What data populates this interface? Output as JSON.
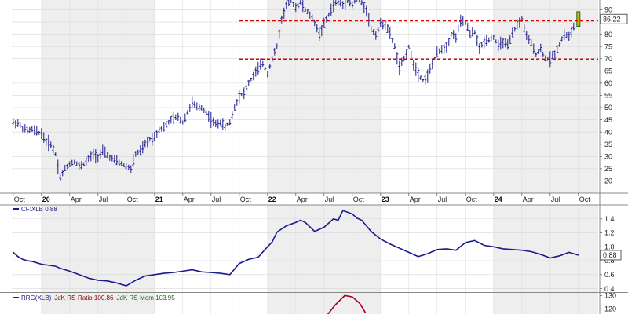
{
  "chart_data": [
    {
      "type": "bar",
      "subtype": "ohlc",
      "title": "",
      "xlabel": "",
      "ylabel": "",
      "ylim": [
        15,
        94
      ],
      "y_ticks": [
        20,
        25,
        30,
        35,
        40,
        45,
        50,
        55,
        60,
        65,
        70,
        75,
        80,
        85,
        90
      ],
      "x_ticks": [
        {
          "label": "Oct",
          "t": 0,
          "year": false
        },
        {
          "label": "20",
          "t": 3,
          "year": true
        },
        {
          "label": "Apr",
          "t": 6,
          "year": false
        },
        {
          "label": "Jul",
          "t": 9,
          "year": false
        },
        {
          "label": "Oct",
          "t": 12,
          "year": false
        },
        {
          "label": "21",
          "t": 15,
          "year": true
        },
        {
          "label": "Apr",
          "t": 18,
          "year": false
        },
        {
          "label": "Jul",
          "t": 21,
          "year": false
        },
        {
          "label": "Oct",
          "t": 24,
          "year": false
        },
        {
          "label": "22",
          "t": 27,
          "year": true
        },
        {
          "label": "Apr",
          "t": 30,
          "year": false
        },
        {
          "label": "Jul",
          "t": 33,
          "year": false
        },
        {
          "label": "Oct",
          "t": 36,
          "year": false
        },
        {
          "label": "23",
          "t": 39,
          "year": true
        },
        {
          "label": "Apr",
          "t": 42,
          "year": false
        },
        {
          "label": "Jul",
          "t": 45,
          "year": false
        },
        {
          "label": "Oct",
          "t": 48,
          "year": false
        },
        {
          "label": "24",
          "t": 51,
          "year": true
        },
        {
          "label": "Apr",
          "t": 54,
          "year": false
        },
        {
          "label": "Jul",
          "t": 57,
          "year": false
        },
        {
          "label": "Oct",
          "t": 60,
          "year": false
        }
      ],
      "t_range": [
        -0.15,
        62.1
      ],
      "horizontal_lines": [
        {
          "value": 85.5,
          "color": "#dd0000",
          "style": "dashed"
        },
        {
          "value": 69.8,
          "color": "#dd0000",
          "style": "dashed"
        }
      ],
      "last_value_label": "86.22",
      "last_value": 86.22,
      "series": [
        {
          "color": "#1a1a8c",
          "points": [
            [
              0,
              44
            ],
            [
              0.5,
              43.5
            ],
            [
              1,
              41.5
            ],
            [
              1.5,
              40.5
            ],
            [
              2,
              41
            ],
            [
              2.5,
              40
            ],
            [
              3,
              39.5
            ],
            [
              3.5,
              36
            ],
            [
              4,
              35
            ],
            [
              4.5,
              31
            ],
            [
              5,
              21.5
            ],
            [
              5.5,
              25
            ],
            [
              6,
              27
            ],
            [
              6.5,
              28
            ],
            [
              7,
              26
            ],
            [
              7.5,
              27
            ],
            [
              8,
              29
            ],
            [
              8.5,
              31
            ],
            [
              9,
              30
            ],
            [
              9.5,
              32
            ],
            [
              10,
              30.5
            ],
            [
              10.5,
              29
            ],
            [
              11,
              28
            ],
            [
              11.5,
              27
            ],
            [
              12,
              26
            ],
            [
              12.5,
              25
            ],
            [
              13,
              31
            ],
            [
              13.5,
              32
            ],
            [
              14,
              35
            ],
            [
              14.5,
              37
            ],
            [
              15,
              38
            ],
            [
              15.5,
              41
            ],
            [
              16,
              42
            ],
            [
              16.5,
              44
            ],
            [
              17,
              45.5
            ],
            [
              17.5,
              46
            ],
            [
              18,
              44
            ],
            [
              18.5,
              48
            ],
            [
              19,
              52
            ],
            [
              19.5,
              50
            ],
            [
              20,
              50
            ],
            [
              20.5,
              48
            ],
            [
              21,
              45
            ],
            [
              21.5,
              43
            ],
            [
              22,
              44
            ],
            [
              22.5,
              42
            ],
            [
              23,
              44
            ],
            [
              23.5,
              50
            ],
            [
              24,
              55
            ],
            [
              24.5,
              56
            ],
            [
              25,
              60
            ],
            [
              25.5,
              63
            ],
            [
              26,
              66
            ],
            [
              26.5,
              68
            ],
            [
              27,
              64
            ],
            [
              27.5,
              70
            ],
            [
              28,
              75
            ],
            [
              28.5,
              86
            ],
            [
              29,
              92
            ],
            [
              29.5,
              94
            ],
            [
              30,
              91
            ],
            [
              30.5,
              93
            ],
            [
              31,
              90
            ],
            [
              31.5,
              88
            ],
            [
              32,
              85
            ],
            [
              32.5,
              80
            ],
            [
              33,
              84
            ],
            [
              33.5,
              88
            ],
            [
              34,
              92
            ],
            [
              34.5,
              93
            ],
            [
              35,
              92
            ],
            [
              35.5,
              94
            ],
            [
              36,
              92
            ],
            [
              36.5,
              95
            ],
            [
              37,
              93
            ],
            [
              37.5,
              90
            ],
            [
              38,
              82
            ],
            [
              38.5,
              80
            ],
            [
              39,
              84
            ],
            [
              39.5,
              84
            ],
            [
              40,
              80
            ],
            [
              40.5,
              75
            ],
            [
              41,
              66
            ],
            [
              41.5,
              70
            ],
            [
              42,
              75
            ],
            [
              42.5,
              68
            ],
            [
              43,
              64
            ],
            [
              43.5,
              61
            ],
            [
              44,
              63
            ],
            [
              44.5,
              68
            ],
            [
              45,
              72
            ],
            [
              45.5,
              74
            ],
            [
              46,
              75
            ],
            [
              46.5,
              80
            ],
            [
              47,
              79
            ],
            [
              47.5,
              85
            ],
            [
              48,
              85
            ],
            [
              48.5,
              80
            ],
            [
              49,
              81
            ],
            [
              49.5,
              74
            ],
            [
              50,
              77
            ],
            [
              50.5,
              78
            ],
            [
              51,
              79
            ],
            [
              51.5,
              75
            ],
            [
              52,
              77
            ],
            [
              52.5,
              75
            ],
            [
              53,
              80
            ],
            [
              53.5,
              84
            ],
            [
              54,
              86
            ],
            [
              54.5,
              79
            ],
            [
              55,
              76
            ],
            [
              55.5,
              72
            ],
            [
              56,
              74
            ],
            [
              56.5,
              70
            ],
            [
              57,
              70
            ],
            [
              57.5,
              72
            ],
            [
              58,
              76
            ],
            [
              58.5,
              80
            ],
            [
              59,
              79
            ],
            [
              59.5,
              83
            ],
            [
              60,
              86.22
            ]
          ]
        }
      ]
    },
    {
      "type": "line",
      "legend": {
        "text": "CF:XLB 0.88",
        "color": "#1a1a8c"
      },
      "ylim": [
        0.35,
        1.6
      ],
      "y_ticks": [
        0.4,
        0.6,
        0.8,
        1.0,
        1.2,
        1.4
      ],
      "y_tick_labels": [
        "0.4",
        "0.6",
        "0.8",
        "1.0",
        "1.2",
        "1.4"
      ],
      "last_value_label": "0.88",
      "last_value": 0.88,
      "series": [
        {
          "color": "#1a1a8c",
          "points": [
            [
              0,
              0.92
            ],
            [
              0.5,
              0.86
            ],
            [
              1,
              0.82
            ],
            [
              1.5,
              0.8
            ],
            [
              2,
              0.79
            ],
            [
              2.5,
              0.77
            ],
            [
              3,
              0.75
            ],
            [
              3.5,
              0.74
            ],
            [
              4,
              0.73
            ],
            [
              4.5,
              0.72
            ],
            [
              5,
              0.69
            ],
            [
              6,
              0.65
            ],
            [
              7,
              0.6
            ],
            [
              8,
              0.55
            ],
            [
              9,
              0.52
            ],
            [
              10,
              0.51
            ],
            [
              11,
              0.48
            ],
            [
              12,
              0.44
            ],
            [
              13,
              0.52
            ],
            [
              14,
              0.58
            ],
            [
              15,
              0.6
            ],
            [
              16,
              0.62
            ],
            [
              17,
              0.63
            ],
            [
              18,
              0.65
            ],
            [
              19,
              0.67
            ],
            [
              20,
              0.64
            ],
            [
              21,
              0.63
            ],
            [
              22,
              0.62
            ],
            [
              23,
              0.6
            ],
            [
              24,
              0.76
            ],
            [
              25,
              0.82
            ],
            [
              26,
              0.85
            ],
            [
              27,
              1.0
            ],
            [
              27.5,
              1.07
            ],
            [
              28,
              1.21
            ],
            [
              29,
              1.3
            ],
            [
              30,
              1.35
            ],
            [
              30.5,
              1.38
            ],
            [
              31,
              1.35
            ],
            [
              32,
              1.22
            ],
            [
              33,
              1.28
            ],
            [
              34,
              1.4
            ],
            [
              34.5,
              1.38
            ],
            [
              35,
              1.52
            ],
            [
              36,
              1.47
            ],
            [
              36.5,
              1.41
            ],
            [
              37,
              1.38
            ],
            [
              38,
              1.22
            ],
            [
              39,
              1.11
            ],
            [
              40,
              1.04
            ],
            [
              41,
              0.98
            ],
            [
              42,
              0.92
            ],
            [
              43,
              0.86
            ],
            [
              44,
              0.9
            ],
            [
              45,
              0.96
            ],
            [
              46,
              0.97
            ],
            [
              47,
              0.95
            ],
            [
              48,
              1.06
            ],
            [
              49,
              1.09
            ],
            [
              50,
              1.02
            ],
            [
              51,
              1.0
            ],
            [
              52,
              0.97
            ],
            [
              53,
              0.96
            ],
            [
              54,
              0.95
            ],
            [
              55,
              0.93
            ],
            [
              56,
              0.89
            ],
            [
              57,
              0.84
            ],
            [
              58,
              0.87
            ],
            [
              59,
              0.92
            ],
            [
              60,
              0.88
            ]
          ]
        }
      ]
    },
    {
      "type": "line",
      "legend": [
        {
          "text": "RRG(XLB)",
          "color": "#1a1a80"
        },
        {
          "text": "JdK RS-Ratio 100.86",
          "color": "#8b0000"
        },
        {
          "text": "JdK RS-Mom 103.95",
          "color": "#1a6b1a"
        }
      ],
      "ylim": [
        116,
        132
      ],
      "y_ticks": [
        120,
        130
      ],
      "y_tick_labels": [
        "120",
        "130"
      ],
      "series": [
        {
          "name": "JdK RS-Ratio",
          "color": "#a00020",
          "points": [
            [
              33.3,
              115
            ],
            [
              34.2,
              123
            ],
            [
              35.2,
              130
            ],
            [
              36.0,
              129
            ],
            [
              36.8,
              124
            ],
            [
              37.4,
              117
            ]
          ]
        }
      ]
    }
  ]
}
